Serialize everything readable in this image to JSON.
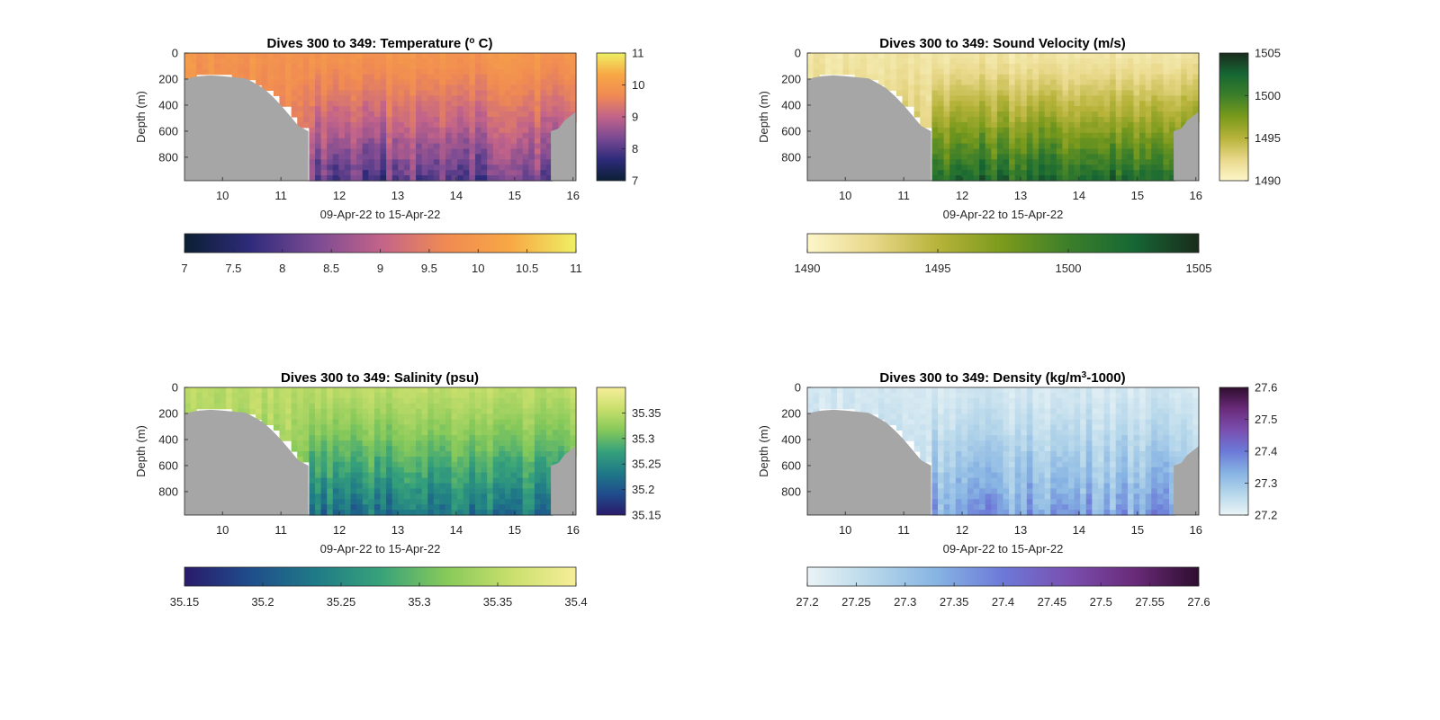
{
  "chart_data": [
    {
      "type": "heatmap",
      "title_pre": "Dives 300 to 349: Temperature (",
      "title_sup": "o",
      "title_post": " C)",
      "xlabel": "09-Apr-22 to 15-Apr-22",
      "ylabel": "Depth (m)",
      "xlim": [
        9.35,
        16.05
      ],
      "ylim": [
        0,
        980
      ],
      "xticks": [
        "10",
        "11",
        "12",
        "13",
        "14",
        "15",
        "16"
      ],
      "yticks": [
        "0",
        "200",
        "400",
        "600",
        "800"
      ],
      "colorbar_vertical": {
        "range": [
          7,
          11
        ],
        "ticks": [
          "7",
          "8",
          "9",
          "10",
          "11"
        ]
      },
      "colorbar_horizontal": {
        "range": [
          7,
          11
        ],
        "ticks": [
          "7",
          "7.5",
          "8",
          "8.5",
          "9",
          "9.5",
          "10",
          "10.5",
          "11"
        ]
      },
      "colormap": [
        "#0a1f33",
        "#2e2b7a",
        "#7a4a93",
        "#c2638a",
        "#f08a53",
        "#f8a845",
        "#eef063"
      ],
      "field": {
        "surface_value": 9.9,
        "bottom_value": 8.0
      },
      "seabed_color": "#a6a6a6"
    },
    {
      "type": "heatmap",
      "title": "Dives 300 to 349: Sound Velocity (m/s)",
      "xlabel": "09-Apr-22 to 15-Apr-22",
      "ylabel": "Depth (m)",
      "xlim": [
        9.35,
        16.05
      ],
      "ylim": [
        0,
        980
      ],
      "xticks": [
        "10",
        "11",
        "12",
        "13",
        "14",
        "15",
        "16"
      ],
      "yticks": [
        "0",
        "200",
        "400",
        "600",
        "800"
      ],
      "colorbar_vertical": {
        "range": [
          1490,
          1505
        ],
        "ticks": [
          "1490",
          "1495",
          "1500",
          "1505"
        ]
      },
      "colorbar_horizontal": {
        "range": [
          1490,
          1505
        ],
        "ticks": [
          "1490",
          "1495",
          "1500",
          "1505"
        ]
      },
      "colormap": [
        "#fdf6c9",
        "#e8d88a",
        "#b7b33a",
        "#7a9a1c",
        "#3c7f2a",
        "#166734",
        "#1a2b1c"
      ],
      "field": {
        "surface_value": 1491.5,
        "bottom_value": 1502.5
      },
      "seabed_color": "#a6a6a6"
    },
    {
      "type": "heatmap",
      "title": "Dives 300 to 349: Salinity (psu)",
      "xlabel": "09-Apr-22 to 15-Apr-22",
      "ylabel": "Depth (m)",
      "xlim": [
        9.35,
        16.05
      ],
      "ylim": [
        0,
        980
      ],
      "xticks": [
        "10",
        "11",
        "12",
        "13",
        "14",
        "15",
        "16"
      ],
      "yticks": [
        "0",
        "200",
        "400",
        "600",
        "800"
      ],
      "colorbar_vertical": {
        "range": [
          35.15,
          35.4
        ],
        "ticks": [
          "35.15",
          "35.2",
          "35.25",
          "35.3",
          "35.35"
        ]
      },
      "colorbar_horizontal": {
        "range": [
          35.15,
          35.4
        ],
        "ticks": [
          "35.15",
          "35.2",
          "35.25",
          "35.3",
          "35.35",
          "35.4"
        ]
      },
      "colormap": [
        "#2a1a6b",
        "#1f4d8c",
        "#1f7a87",
        "#37a27a",
        "#86c95a",
        "#c9df6c",
        "#f6ee9a"
      ],
      "field": {
        "surface_value": 35.35,
        "bottom_value": 35.22
      },
      "seabed_color": "#a6a6a6"
    },
    {
      "type": "heatmap",
      "title_pre": "Dives 300 to 349: Density (kg/m",
      "title_sup": "3",
      "title_post": "-1000)",
      "xlabel": "09-Apr-22 to 15-Apr-22",
      "ylabel": "Depth (m)",
      "xlim": [
        9.35,
        16.05
      ],
      "ylim": [
        0,
        980
      ],
      "xticks": [
        "10",
        "11",
        "12",
        "13",
        "14",
        "15",
        "16"
      ],
      "yticks": [
        "0",
        "200",
        "400",
        "600",
        "800"
      ],
      "colorbar_vertical": {
        "range": [
          27.2,
          27.6
        ],
        "ticks": [
          "27.2",
          "27.3",
          "27.4",
          "27.5",
          "27.6"
        ]
      },
      "colorbar_horizontal": {
        "range": [
          27.2,
          27.6
        ],
        "ticks": [
          "27.2",
          "27.25",
          "27.3",
          "27.35",
          "27.4",
          "27.45",
          "27.5",
          "27.55",
          "27.6"
        ]
      },
      "colormap": [
        "#eaf4f6",
        "#b6d7ea",
        "#86b3e3",
        "#6c79d8",
        "#7a4fb0",
        "#6a2b7a",
        "#2e0d2e"
      ],
      "field": {
        "surface_value": 27.23,
        "bottom_value": 27.36
      },
      "seabed_color": "#a6a6a6"
    }
  ]
}
